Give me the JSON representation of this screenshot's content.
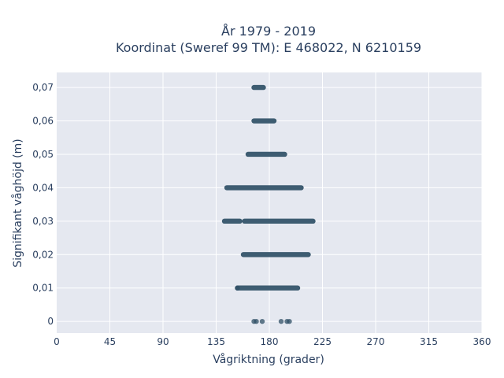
{
  "chart_data": {
    "type": "scatter",
    "title_line1": "År 1979 - 2019",
    "title_line2": "Koordinat (Sweref 99 TM): E 468022, N 6210159",
    "xlabel": "Vågriktning (grader)",
    "ylabel": "Signifikant våghöjd (m)",
    "xlim": [
      0,
      360
    ],
    "ylim": [
      -0.0035,
      0.0745
    ],
    "x_ticks": [
      0,
      45,
      90,
      135,
      180,
      225,
      270,
      315,
      360
    ],
    "x_tick_labels": [
      "0",
      "45",
      "90",
      "135",
      "180",
      "225",
      "270",
      "315",
      "360"
    ],
    "y_ticks": [
      0,
      0.01,
      0.02,
      0.03,
      0.04,
      0.05,
      0.06,
      0.07
    ],
    "y_tick_labels": [
      "0",
      "0,01",
      "0,02",
      "0,03",
      "0,04",
      "0,05",
      "0,06",
      "0,07"
    ],
    "grid": true,
    "colors": {
      "marker": "#2f4f66",
      "plot_bg": "#e5e8f0",
      "grid": "#ffffff",
      "text": "#2a3f5f"
    },
    "series": [
      {
        "bands": [
          {
            "y": 0.07,
            "x_from": 167,
            "x_to": 175
          },
          {
            "y": 0.06,
            "x_from": 167,
            "x_to": 184
          },
          {
            "y": 0.05,
            "x_from": 162,
            "x_to": 193
          },
          {
            "y": 0.04,
            "x_from": 144,
            "x_to": 207
          },
          {
            "y": 0.03,
            "x_from": 142,
            "x_to": 155
          },
          {
            "y": 0.03,
            "x_from": 159,
            "x_to": 217
          },
          {
            "y": 0.02,
            "x_from": 158,
            "x_to": 213
          },
          {
            "y": 0.01,
            "x_from": 153,
            "x_to": 204
          }
        ],
        "points": [
          {
            "x": 167,
            "y": 0
          },
          {
            "x": 169,
            "y": 0
          },
          {
            "x": 174,
            "y": 0
          },
          {
            "x": 190,
            "y": 0
          },
          {
            "x": 195,
            "y": 0
          },
          {
            "x": 197,
            "y": 0
          },
          {
            "x": 153,
            "y": 0.01
          }
        ]
      }
    ]
  }
}
